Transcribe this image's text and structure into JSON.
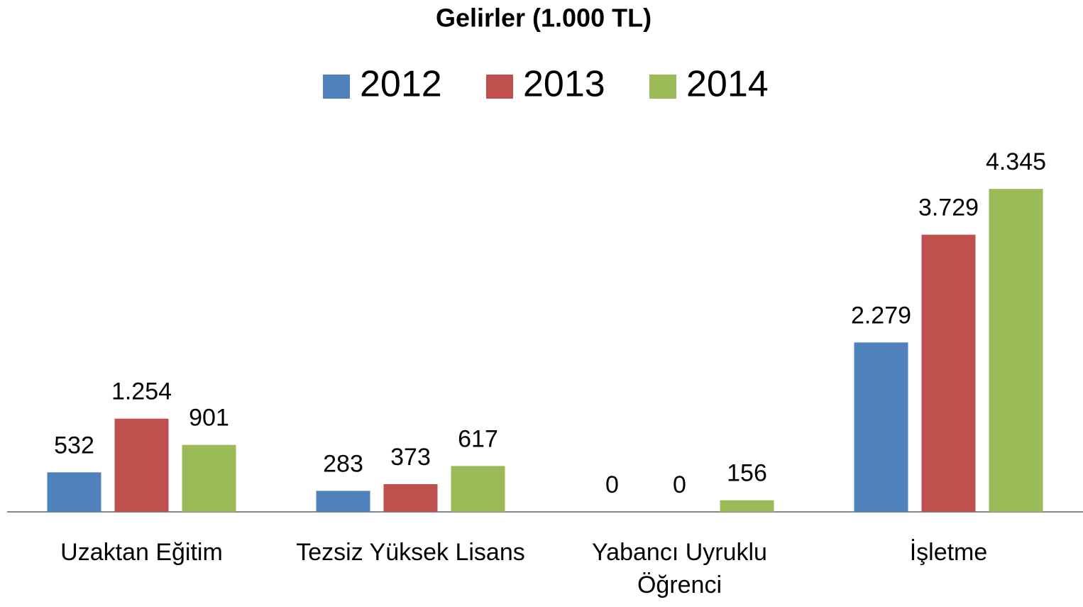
{
  "chart_data": {
    "type": "bar",
    "title": "Gelirler (1.000 TL)",
    "categories": [
      "Uzaktan Eğitim",
      "Tezsiz Yüksek Lisans",
      "Yabancı Uyruklu Öğrenci",
      "İşletme"
    ],
    "series": [
      {
        "name": "2012",
        "color": "#4f81bd",
        "values": [
          532,
          283,
          0,
          2279
        ],
        "value_labels": [
          "532",
          "283",
          "0",
          "2.279"
        ]
      },
      {
        "name": "2013",
        "color": "#c0504d",
        "values": [
          1254,
          373,
          0,
          3729
        ],
        "value_labels": [
          "1.254",
          "373",
          "0",
          "3.729"
        ]
      },
      {
        "name": "2014",
        "color": "#9bbb59",
        "values": [
          901,
          617,
          156,
          4345
        ],
        "value_labels": [
          "901",
          "617",
          "156",
          "4.345"
        ]
      }
    ],
    "ylim": [
      0,
      5000
    ],
    "legend": "top",
    "grid": false
  }
}
